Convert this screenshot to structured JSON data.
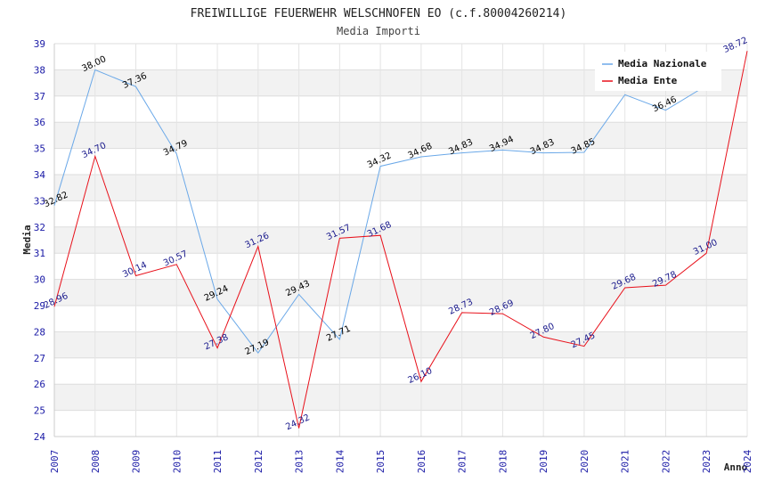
{
  "chart_data": {
    "type": "line",
    "title": "FREIWILLIGE FEUERWEHR WELSCHNOFEN EO (c.f.80004260214)",
    "subtitle": "Media Importi",
    "xlabel": "Anno",
    "ylabel": "Media",
    "ylim": [
      24,
      39
    ],
    "grid": true,
    "legend_position": "top-right",
    "x": [
      "2007",
      "2008",
      "2009",
      "2010",
      "2011",
      "2012",
      "2013",
      "2014",
      "2015",
      "2016",
      "2017",
      "2018",
      "2019",
      "2020",
      "2021",
      "2022",
      "2023",
      "2024"
    ],
    "series": [
      {
        "name": "Media Nazionale",
        "color": "#6aa8e8",
        "label_color": "#000000",
        "values": [
          32.82,
          38.0,
          37.36,
          34.79,
          29.24,
          27.19,
          29.43,
          27.71,
          34.32,
          34.68,
          34.83,
          34.94,
          34.83,
          34.85,
          37.05,
          36.46,
          37.4,
          null
        ],
        "labels": [
          "32.82",
          "38.00",
          "37.36",
          "34.79",
          "29.24",
          "27.19",
          "29.43",
          "27.71",
          "34.32",
          "34.68",
          "34.83",
          "34.94",
          "34.83",
          "34.85",
          "",
          "36.46",
          "",
          ""
        ]
      },
      {
        "name": "Media Ente",
        "color": "#e8101a",
        "label_color": "#1a1a8c",
        "values": [
          28.96,
          34.7,
          30.14,
          30.57,
          27.38,
          31.26,
          24.32,
          31.57,
          31.68,
          26.1,
          28.73,
          28.69,
          27.8,
          27.45,
          29.68,
          29.78,
          31.0,
          38.72
        ],
        "labels": [
          "28.96",
          "34.70",
          "30.14",
          "30.57",
          "27.38",
          "31.26",
          "24.32",
          "31.57",
          "31.68",
          "26.10",
          "28.73",
          "28.69",
          "27.80",
          "27.45",
          "29.68",
          "29.78",
          "31.00",
          "38.72"
        ]
      }
    ]
  }
}
